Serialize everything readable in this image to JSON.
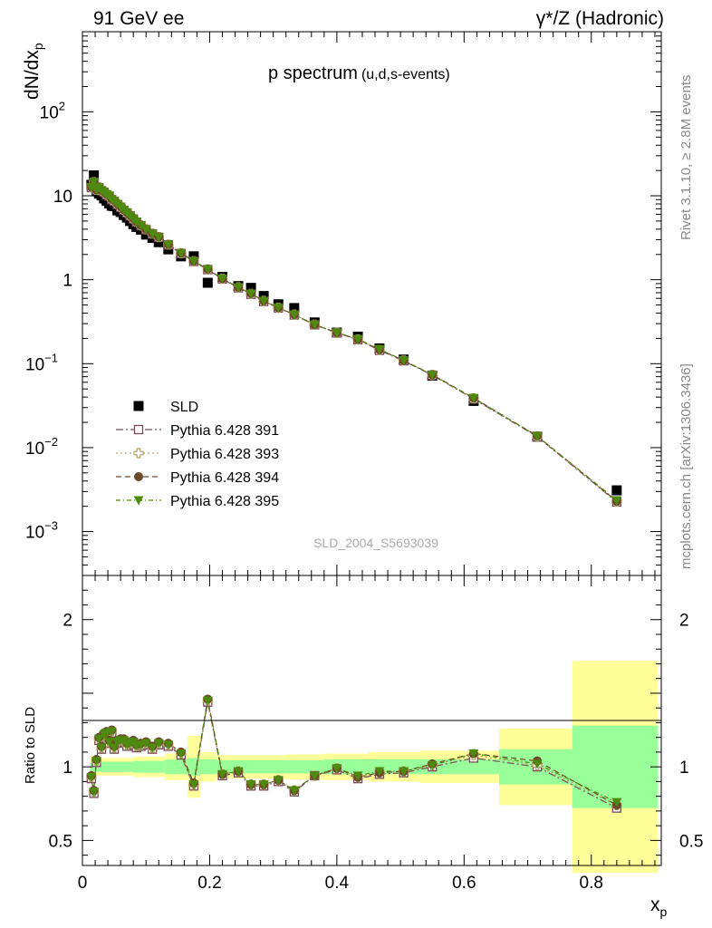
{
  "header": {
    "left": "91 GeV ee",
    "right": "γ*/Z (Hadronic)"
  },
  "side_labels": {
    "rivet": "Rivet 3.1.10, ≥ 2.8M events",
    "mcplots": "mcplots.cern.ch [arXiv:1306.3436]"
  },
  "watermark": "SLD_2004_S5693039",
  "colors": {
    "data": "#000000",
    "p391": "#7a4a5a",
    "p393": "#b0a060",
    "p394": "#6b4a2a",
    "p395": "#4f8a10",
    "band_yellow": "#ffff99",
    "band_green": "#99ff99"
  },
  "chart_data": [
    {
      "type": "scatter",
      "title": "p spectrum",
      "subtitle": "(u,d,s-events)",
      "ylabel": "dN/dx",
      "ylabel_sub": "p",
      "yscale": "log",
      "ylim": [
        0.0003,
        900
      ],
      "xlim": [
        0,
        0.91
      ],
      "yticks": [
        {
          "v": 100,
          "base": "10",
          "exp": "2"
        },
        {
          "v": 10,
          "base": "10",
          "exp": ""
        },
        {
          "v": 1,
          "base": "1",
          "exp": ""
        },
        {
          "v": 0.1,
          "base": "10",
          "exp": "−1"
        },
        {
          "v": 0.01,
          "base": "10",
          "exp": "−2"
        },
        {
          "v": 0.001,
          "base": "10",
          "exp": "−3"
        }
      ],
      "legend": [
        {
          "name": "SLD",
          "key": "sld"
        },
        {
          "name": "Pythia 6.428 391",
          "key": "p391"
        },
        {
          "name": "Pythia 6.428 393",
          "key": "p393"
        },
        {
          "name": "Pythia 6.428 394",
          "key": "p394"
        },
        {
          "name": "Pythia 6.428 395",
          "key": "p395"
        }
      ],
      "x": [
        0.014,
        0.018,
        0.022,
        0.026,
        0.03,
        0.034,
        0.038,
        0.042,
        0.046,
        0.05,
        0.055,
        0.06,
        0.065,
        0.07,
        0.075,
        0.08,
        0.085,
        0.092,
        0.1,
        0.11,
        0.12,
        0.135,
        0.155,
        0.175,
        0.197,
        0.22,
        0.245,
        0.265,
        0.285,
        0.308,
        0.333,
        0.365,
        0.4,
        0.433,
        0.467,
        0.505,
        0.55,
        0.615,
        0.715,
        0.84
      ],
      "sld": [
        13.5,
        17.5,
        11.3,
        10.6,
        10.1,
        9.3,
        8.7,
        8.1,
        7.6,
        7.5,
        6.7,
        6.4,
        5.9,
        5.5,
        5.0,
        4.6,
        4.25,
        3.95,
        3.45,
        3.15,
        2.8,
        2.3,
        1.9,
        1.9,
        0.92,
        1.08,
        0.84,
        0.8,
        0.64,
        0.51,
        0.46,
        0.31,
        0.235,
        0.21,
        0.152,
        0.112,
        0.072,
        0.036,
        0.0135,
        0.0031
      ],
      "p391": [
        12.5,
        14.5,
        11.7,
        12.5,
        11.5,
        11.0,
        10.3,
        9.9,
        9.0,
        8.6,
        7.9,
        7.3,
        6.7,
        6.25,
        5.75,
        5.3,
        4.85,
        4.4,
        3.95,
        3.5,
        3.2,
        2.6,
        2.05,
        1.65,
        1.32,
        1.02,
        0.8,
        0.67,
        0.55,
        0.46,
        0.38,
        0.29,
        0.232,
        0.193,
        0.144,
        0.108,
        0.073,
        0.038,
        0.0135,
        0.00225
      ],
      "p393": [
        12.6,
        14.6,
        11.8,
        12.6,
        11.6,
        11.1,
        10.4,
        10.0,
        9.1,
        8.7,
        8.0,
        7.4,
        6.8,
        6.3,
        5.8,
        5.35,
        4.9,
        4.45,
        4.0,
        3.55,
        3.22,
        2.62,
        2.07,
        1.66,
        1.33,
        1.03,
        0.81,
        0.68,
        0.56,
        0.465,
        0.385,
        0.292,
        0.233,
        0.194,
        0.146,
        0.109,
        0.0735,
        0.0385,
        0.0136,
        0.00228
      ],
      "p394": [
        12.7,
        14.7,
        11.8,
        12.7,
        11.7,
        11.2,
        10.5,
        10.1,
        9.15,
        8.75,
        8.05,
        7.45,
        6.85,
        6.35,
        5.85,
        5.4,
        4.9,
        4.45,
        4.0,
        3.55,
        3.25,
        2.63,
        2.08,
        1.67,
        1.34,
        1.03,
        0.81,
        0.685,
        0.56,
        0.465,
        0.385,
        0.292,
        0.234,
        0.195,
        0.147,
        0.109,
        0.074,
        0.039,
        0.0138,
        0.0023
      ],
      "p395": [
        12.6,
        14.6,
        11.8,
        12.6,
        11.6,
        11.1,
        10.4,
        10.0,
        9.1,
        8.7,
        8.0,
        7.4,
        6.8,
        6.3,
        5.8,
        5.35,
        4.9,
        4.45,
        4.0,
        3.55,
        3.22,
        2.62,
        2.07,
        1.66,
        1.33,
        1.03,
        0.81,
        0.68,
        0.56,
        0.465,
        0.385,
        0.292,
        0.234,
        0.197,
        0.149,
        0.11,
        0.0735,
        0.039,
        0.0137,
        0.00236
      ]
    },
    {
      "type": "scatter",
      "ylabel": "Ratio to SLD",
      "xlabel": "x",
      "xlabel_sub": "p",
      "ylim": [
        0.33,
        2.3
      ],
      "xlim": [
        0,
        0.91
      ],
      "yticks": [
        0.5,
        1,
        2
      ],
      "xticks": [
        0,
        0.2,
        0.4,
        0.6,
        0.8
      ],
      "xtick_labels": [
        "0",
        "0.2",
        "0.4",
        "0.6",
        "0.8"
      ],
      "ytick_labels": [
        "0.5",
        "1",
        "2"
      ],
      "x": [
        0.014,
        0.018,
        0.022,
        0.026,
        0.03,
        0.034,
        0.038,
        0.042,
        0.046,
        0.05,
        0.055,
        0.06,
        0.065,
        0.07,
        0.075,
        0.08,
        0.085,
        0.092,
        0.1,
        0.11,
        0.12,
        0.135,
        0.155,
        0.175,
        0.197,
        0.22,
        0.245,
        0.265,
        0.285,
        0.308,
        0.333,
        0.365,
        0.4,
        0.433,
        0.467,
        0.505,
        0.55,
        0.615,
        0.715,
        0.84
      ],
      "p391": [
        0.92,
        0.82,
        1.03,
        1.18,
        1.12,
        1.21,
        1.22,
        1.16,
        1.23,
        1.12,
        1.16,
        1.17,
        1.17,
        1.14,
        1.15,
        1.16,
        1.13,
        1.14,
        1.15,
        1.12,
        1.15,
        1.14,
        1.08,
        0.87,
        1.44,
        0.94,
        0.96,
        0.87,
        0.87,
        0.9,
        0.83,
        0.94,
        0.98,
        0.92,
        0.95,
        0.96,
        1.0,
        1.06,
        1.0,
        0.72
      ],
      "p393": [
        0.93,
        0.83,
        1.04,
        1.19,
        1.13,
        1.22,
        1.23,
        1.17,
        1.24,
        1.13,
        1.17,
        1.18,
        1.18,
        1.15,
        1.16,
        1.17,
        1.14,
        1.15,
        1.16,
        1.13,
        1.16,
        1.15,
        1.09,
        0.88,
        1.45,
        0.95,
        0.97,
        0.88,
        0.88,
        0.91,
        0.84,
        0.94,
        0.99,
        0.93,
        0.96,
        0.97,
        1.01,
        1.08,
        1.01,
        0.74
      ],
      "p394": [
        0.94,
        0.84,
        1.05,
        1.2,
        1.14,
        1.23,
        1.24,
        1.18,
        1.25,
        1.14,
        1.18,
        1.19,
        1.19,
        1.16,
        1.17,
        1.18,
        1.15,
        1.16,
        1.17,
        1.14,
        1.17,
        1.16,
        1.1,
        0.89,
        1.46,
        0.95,
        0.97,
        0.88,
        0.88,
        0.91,
        0.84,
        0.94,
        0.99,
        0.93,
        0.96,
        0.97,
        1.02,
        1.09,
        1.04,
        0.74
      ],
      "p395": [
        0.93,
        0.83,
        1.04,
        1.19,
        1.13,
        1.22,
        1.23,
        1.17,
        1.24,
        1.13,
        1.17,
        1.18,
        1.18,
        1.15,
        1.16,
        1.17,
        1.14,
        1.15,
        1.16,
        1.13,
        1.16,
        1.15,
        1.09,
        0.88,
        1.45,
        0.95,
        0.97,
        0.88,
        0.88,
        0.91,
        0.84,
        0.94,
        0.99,
        0.94,
        0.97,
        0.97,
        1.01,
        1.09,
        1.02,
        0.76
      ],
      "bands": [
        {
          "x0": 0.012,
          "x1": 0.018,
          "g": 0.03,
          "y": 0.07
        },
        {
          "x0": 0.018,
          "x1": 0.08,
          "g": 0.035,
          "y": 0.06
        },
        {
          "x0": 0.08,
          "x1": 0.13,
          "g": 0.04,
          "y": 0.07
        },
        {
          "x0": 0.13,
          "x1": 0.165,
          "g": 0.05,
          "y": 0.09
        },
        {
          "x0": 0.165,
          "x1": 0.185,
          "g": 0.06,
          "y": 0.21
        },
        {
          "x0": 0.185,
          "x1": 0.21,
          "g": 0.05,
          "y": 0.1
        },
        {
          "x0": 0.21,
          "x1": 0.32,
          "g": 0.045,
          "y": 0.08
        },
        {
          "x0": 0.32,
          "x1": 0.38,
          "g": 0.045,
          "y": 0.085
        },
        {
          "x0": 0.38,
          "x1": 0.45,
          "g": 0.05,
          "y": 0.09
        },
        {
          "x0": 0.45,
          "x1": 0.53,
          "g": 0.05,
          "y": 0.1
        },
        {
          "x0": 0.53,
          "x1": 0.655,
          "g": 0.05,
          "y": 0.11
        },
        {
          "x0": 0.655,
          "x1": 0.77,
          "g": 0.12,
          "y": 0.26
        },
        {
          "x0": 0.77,
          "x1": 0.905,
          "g": 0.28,
          "y": 0.72
        }
      ]
    }
  ]
}
